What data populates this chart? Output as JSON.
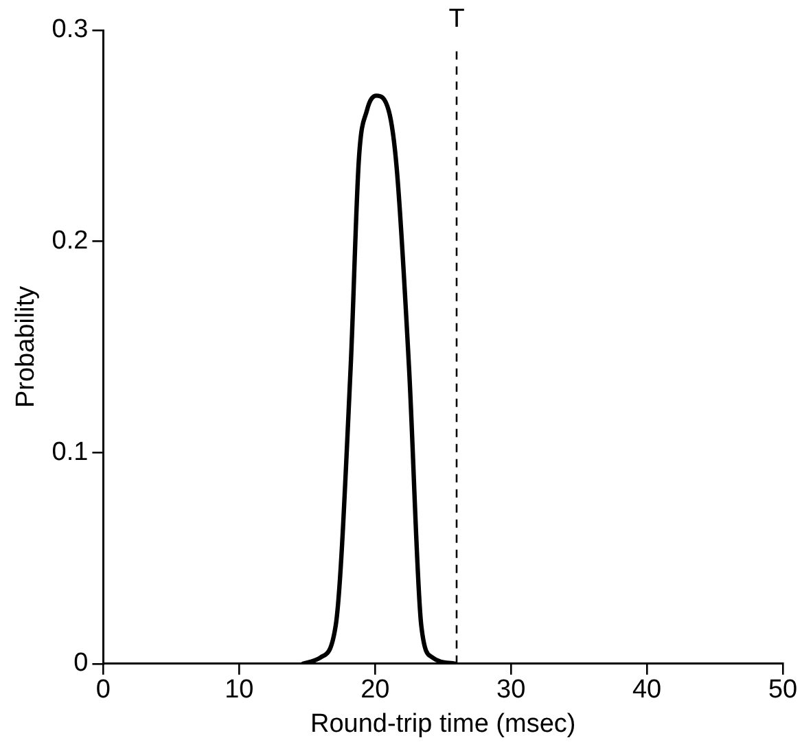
{
  "chart_data": {
    "type": "line",
    "xlabel": "Round-trip time (msec)",
    "ylabel": "Probability",
    "series": [
      {
        "color": "#000000",
        "x": [
          14.7,
          16.0,
          17.1,
          18.2,
          18.8,
          19.4,
          20.1,
          21.0,
          21.6,
          22.5,
          23.4,
          24.2,
          25.9
        ],
        "values": [
          0,
          0.003,
          0.018,
          0.14,
          0.238,
          0.262,
          0.269,
          0.262,
          0.234,
          0.14,
          0.018,
          0.003,
          0
        ]
      }
    ],
    "xlim": [
      0,
      50
    ],
    "xticks": [
      0,
      10,
      20,
      30,
      40,
      50
    ],
    "ylim": [
      0,
      0.3
    ],
    "yticks": [
      0,
      0.1,
      0.2,
      0.3
    ],
    "ref_lines": [
      {
        "axis": "x",
        "value": 26,
        "label": "T",
        "color": "#000000",
        "line_style": "dashed"
      }
    ],
    "grid": false,
    "legend": false,
    "marker": "none",
    "line_style": "solid"
  }
}
